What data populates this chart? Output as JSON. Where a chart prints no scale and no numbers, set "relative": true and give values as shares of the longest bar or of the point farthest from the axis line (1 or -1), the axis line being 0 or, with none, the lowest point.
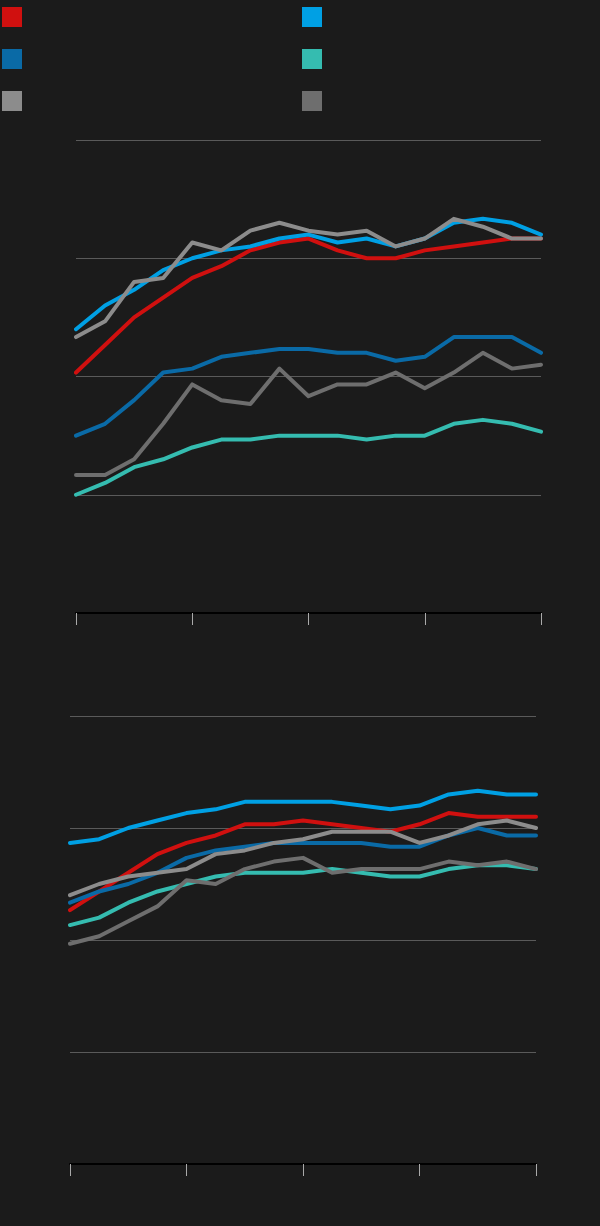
{
  "chart_data": [
    {
      "type": "line",
      "relative": true,
      "grid": "y",
      "categories": [
        null,
        null,
        null,
        null,
        null,
        null,
        null,
        null,
        null,
        null,
        null,
        null,
        null,
        null,
        null,
        null,
        null
      ],
      "series": [
        {
          "color": "#d0100f",
          "values": [
            0.61,
            0.68,
            0.75,
            0.8,
            0.85,
            0.88,
            0.92,
            0.94,
            0.95,
            0.92,
            0.9,
            0.9,
            0.92,
            0.93,
            0.94,
            0.95,
            0.95
          ]
        },
        {
          "color": "#00a0e4",
          "values": [
            0.72,
            0.78,
            0.82,
            0.87,
            0.9,
            0.92,
            0.93,
            0.95,
            0.96,
            0.94,
            0.95,
            0.93,
            0.95,
            0.99,
            1.0,
            0.99,
            0.96
          ]
        },
        {
          "color": "#0a6aa6",
          "values": [
            0.45,
            0.48,
            0.54,
            0.61,
            0.62,
            0.65,
            0.66,
            0.67,
            0.67,
            0.66,
            0.66,
            0.64,
            0.65,
            0.7,
            0.7,
            0.7,
            0.66
          ]
        },
        {
          "color": "#35bcb0",
          "values": [
            0.3,
            0.33,
            0.37,
            0.39,
            0.42,
            0.44,
            0.44,
            0.45,
            0.45,
            0.45,
            0.44,
            0.45,
            0.45,
            0.48,
            0.49,
            0.48,
            0.46
          ]
        },
        {
          "color": "#8c8c8c",
          "values": [
            0.7,
            0.74,
            0.84,
            0.85,
            0.94,
            0.92,
            0.97,
            0.99,
            0.97,
            0.96,
            0.97,
            0.93,
            0.95,
            1.0,
            0.98,
            0.95,
            0.95
          ]
        },
        {
          "color": "#6e6e6e",
          "values": [
            0.35,
            0.35,
            0.39,
            0.48,
            0.58,
            0.54,
            0.53,
            0.62,
            0.55,
            0.58,
            0.58,
            0.61,
            0.57,
            0.61,
            0.66,
            0.62,
            0.63
          ]
        }
      ]
    },
    {
      "type": "line",
      "relative": true,
      "grid": "y",
      "categories": [
        null,
        null,
        null,
        null,
        null,
        null,
        null,
        null,
        null,
        null,
        null,
        null,
        null,
        null,
        null,
        null,
        null
      ],
      "series": [
        {
          "color": "#d0100f",
          "values": [
            0.68,
            0.73,
            0.78,
            0.83,
            0.86,
            0.88,
            0.91,
            0.91,
            0.92,
            0.91,
            0.9,
            0.89,
            0.91,
            0.94,
            0.93,
            0.93,
            0.93
          ]
        },
        {
          "color": "#00a0e4",
          "values": [
            0.86,
            0.87,
            0.9,
            0.92,
            0.94,
            0.95,
            0.97,
            0.97,
            0.97,
            0.97,
            0.96,
            0.95,
            0.96,
            0.99,
            1.0,
            0.99,
            0.99
          ]
        },
        {
          "color": "#0a6aa6",
          "values": [
            0.7,
            0.73,
            0.75,
            0.78,
            0.82,
            0.84,
            0.85,
            0.86,
            0.86,
            0.86,
            0.86,
            0.85,
            0.85,
            0.88,
            0.9,
            0.88,
            0.88
          ]
        },
        {
          "color": "#35bcb0",
          "values": [
            0.64,
            0.66,
            0.7,
            0.73,
            0.75,
            0.77,
            0.78,
            0.78,
            0.78,
            0.79,
            0.78,
            0.77,
            0.77,
            0.79,
            0.8,
            0.8,
            0.79
          ]
        },
        {
          "color": "#8c8c8c",
          "values": [
            0.72,
            0.75,
            0.77,
            0.78,
            0.79,
            0.83,
            0.84,
            0.86,
            0.87,
            0.89,
            0.89,
            0.89,
            0.86,
            0.88,
            0.91,
            0.92,
            0.9
          ]
        },
        {
          "color": "#6e6e6e",
          "values": [
            0.59,
            0.61,
            0.65,
            0.69,
            0.76,
            0.75,
            0.79,
            0.81,
            0.82,
            0.78,
            0.79,
            0.79,
            0.79,
            0.81,
            0.8,
            0.81,
            0.79
          ]
        }
      ]
    }
  ]
}
